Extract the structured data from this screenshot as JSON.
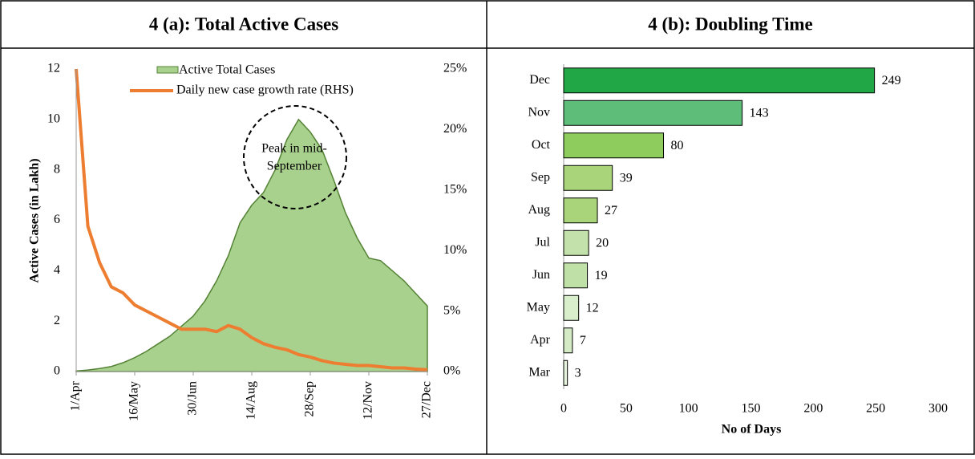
{
  "chart_data": [
    {
      "type": "combo",
      "title": "4 (a): Total Active Cases",
      "ylabel": "Active Cases (in Lakh)",
      "annotation": [
        "Peak in mid-",
        "September"
      ],
      "x": [
        "1/Apr",
        "10/Apr",
        "19/Apr",
        "28/Apr",
        "7/May",
        "16/May",
        "25/May",
        "3/Jun",
        "12/Jun",
        "21/Jun",
        "30/Jun",
        "9/Jul",
        "18/Jul",
        "27/Jul",
        "5/Aug",
        "14/Aug",
        "23/Aug",
        "1/Sep",
        "10/Sep",
        "19/Sep",
        "28/Sep",
        "7/Oct",
        "16/Oct",
        "25/Oct",
        "3/Nov",
        "12/Nov",
        "21/Nov",
        "30/Nov",
        "9/Dec",
        "18/Dec",
        "27/Dec"
      ],
      "xticks": [
        "1/Apr",
        "16/May",
        "30/Jun",
        "14/Aug",
        "28/Sep",
        "12/Nov",
        "27/Dec"
      ],
      "series": [
        {
          "name": "Active Total Cases",
          "type": "area",
          "color": "#a9d18e",
          "values": [
            0.02,
            0.06,
            0.12,
            0.2,
            0.35,
            0.55,
            0.8,
            1.1,
            1.4,
            1.8,
            2.2,
            2.8,
            3.6,
            4.6,
            5.9,
            6.6,
            7.1,
            8.0,
            9.2,
            10.0,
            9.5,
            8.8,
            7.6,
            6.3,
            5.3,
            4.5,
            4.4,
            4.0,
            3.6,
            3.1,
            2.6
          ]
        },
        {
          "name": "Daily new case growth rate (RHS)",
          "type": "line",
          "axis": "y2",
          "color": "#ed7d31",
          "values": [
            25,
            12,
            9,
            7,
            6.5,
            5.5,
            5,
            4.5,
            4,
            3.5,
            3.5,
            3.5,
            3.3,
            3.8,
            3.5,
            2.8,
            2.3,
            2.0,
            1.8,
            1.4,
            1.2,
            0.9,
            0.7,
            0.6,
            0.5,
            0.5,
            0.4,
            0.3,
            0.3,
            0.2,
            0.15
          ]
        }
      ],
      "ylim": [
        0,
        12
      ],
      "yticks": [
        0,
        2,
        4,
        6,
        8,
        10,
        12
      ],
      "y2lim": [
        0,
        25
      ],
      "y2ticks": [
        {
          "value": 0,
          "label": "0%"
        },
        {
          "value": 5,
          "label": "5%"
        },
        {
          "value": 10,
          "label": "10%"
        },
        {
          "value": 15,
          "label": "15%"
        },
        {
          "value": 20,
          "label": "20%"
        },
        {
          "value": 25,
          "label": "25%"
        }
      ]
    },
    {
      "type": "hbar",
      "title": "4 (b): Doubling Time",
      "xlabel": "No of Days",
      "categories": [
        "Dec",
        "Nov",
        "Oct",
        "Sep",
        "Aug",
        "Jul",
        "Jun",
        "May",
        "Apr",
        "Mar"
      ],
      "values": [
        249,
        143,
        80,
        39,
        27,
        20,
        19,
        12,
        7,
        3
      ],
      "colors": [
        "#22a746",
        "#5ebd79",
        "#8fcc5e",
        "#a9d47a",
        "#a9d47a",
        "#c3e2ab",
        "#bfe0a6",
        "#d9eecb",
        "#d4ebc5",
        "#e6f3dc"
      ],
      "xlim": [
        0,
        300
      ],
      "xticks": [
        0,
        50,
        100,
        150,
        200,
        250,
        300
      ]
    }
  ]
}
